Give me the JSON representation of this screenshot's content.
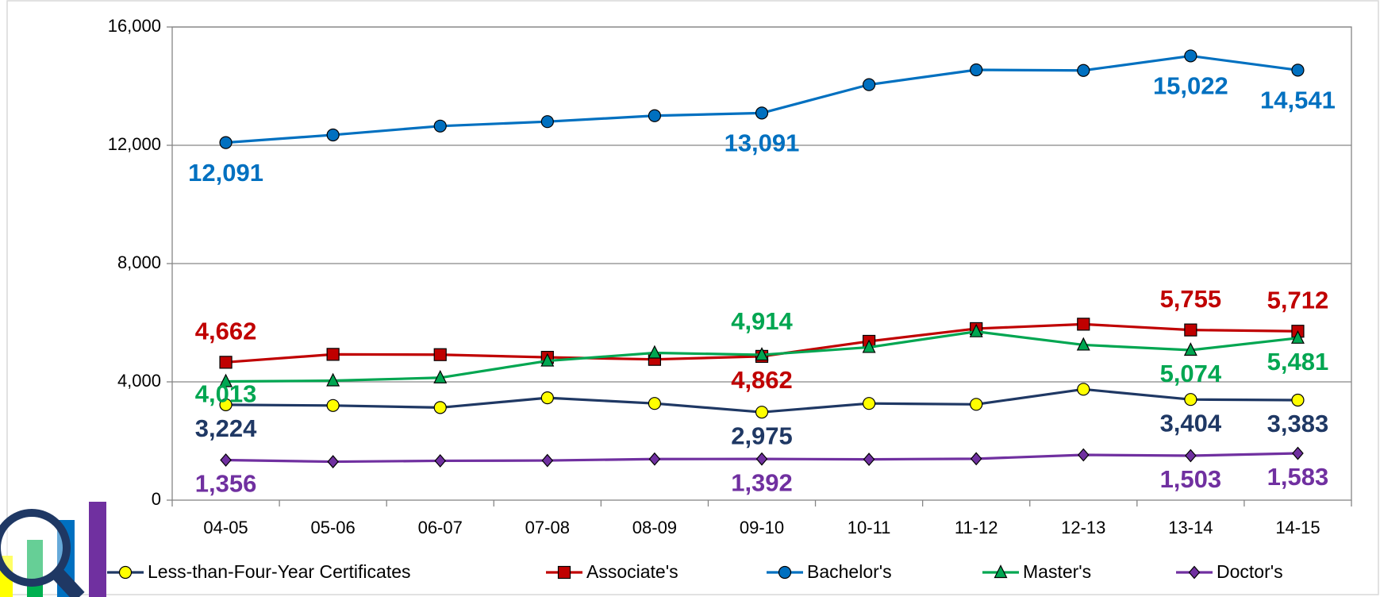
{
  "chart_data": {
    "type": "line",
    "categories": [
      "04-05",
      "05-06",
      "06-07",
      "07-08",
      "08-09",
      "09-10",
      "10-11",
      "11-12",
      "12-13",
      "13-14",
      "14-15"
    ],
    "ylim": [
      0,
      16000
    ],
    "yticks": [
      0,
      {
        "value": 4000,
        "label": "4,000"
      },
      {
        "value": 8000,
        "label": "8,000"
      },
      {
        "value": 12000,
        "label": "12,000"
      },
      {
        "value": 16000,
        "label": "16,000"
      }
    ],
    "grid": true,
    "legend": "bottom",
    "series": [
      {
        "name": "Less-than-Four-Year Certificates",
        "color": "#1f3864",
        "marker_color": "#ffff00",
        "marker": "circle",
        "values": [
          3224,
          3200,
          3130,
          3460,
          3270,
          2975,
          3270,
          3240,
          3750,
          3404,
          3383
        ],
        "value_labels": [
          "3,224",
          null,
          null,
          null,
          null,
          "2,975",
          null,
          null,
          null,
          "3,404",
          "3,383"
        ]
      },
      {
        "name": "Associate's",
        "color": "#c00000",
        "marker_color": "#c00000",
        "marker": "square",
        "values": [
          4662,
          4930,
          4920,
          4830,
          4760,
          4862,
          5370,
          5800,
          5950,
          5755,
          5712
        ],
        "value_labels": [
          "4,662",
          null,
          null,
          null,
          null,
          "4,862",
          null,
          null,
          null,
          "5,755",
          "5,712"
        ]
      },
      {
        "name": "Bachelor's",
        "color": "#0070c0",
        "marker_color": "#0070c0",
        "marker": "circle",
        "values": [
          12091,
          12350,
          12650,
          12800,
          13000,
          13091,
          14050,
          14550,
          14530,
          15022,
          14541
        ],
        "value_labels": [
          "12,091",
          null,
          null,
          null,
          null,
          "13,091",
          null,
          null,
          null,
          "15,022",
          "14,541"
        ]
      },
      {
        "name": "Master's",
        "color": "#00a651",
        "marker_color": "#00a651",
        "marker": "triangle",
        "values": [
          4013,
          4040,
          4140,
          4710,
          4980,
          4914,
          5170,
          5700,
          5250,
          5074,
          5481
        ],
        "value_labels": [
          "4,013",
          null,
          null,
          null,
          null,
          "4,914",
          null,
          null,
          null,
          "5,074",
          "5,481"
        ]
      },
      {
        "name": "Doctor's",
        "color": "#7030a0",
        "marker_color": "#7030a0",
        "marker": "diamond",
        "values": [
          1356,
          1300,
          1330,
          1340,
          1390,
          1392,
          1380,
          1400,
          1530,
          1503,
          1583
        ],
        "value_labels": [
          "1,356",
          null,
          null,
          null,
          null,
          "1,392",
          null,
          null,
          null,
          "1,503",
          "1,583"
        ]
      }
    ]
  }
}
